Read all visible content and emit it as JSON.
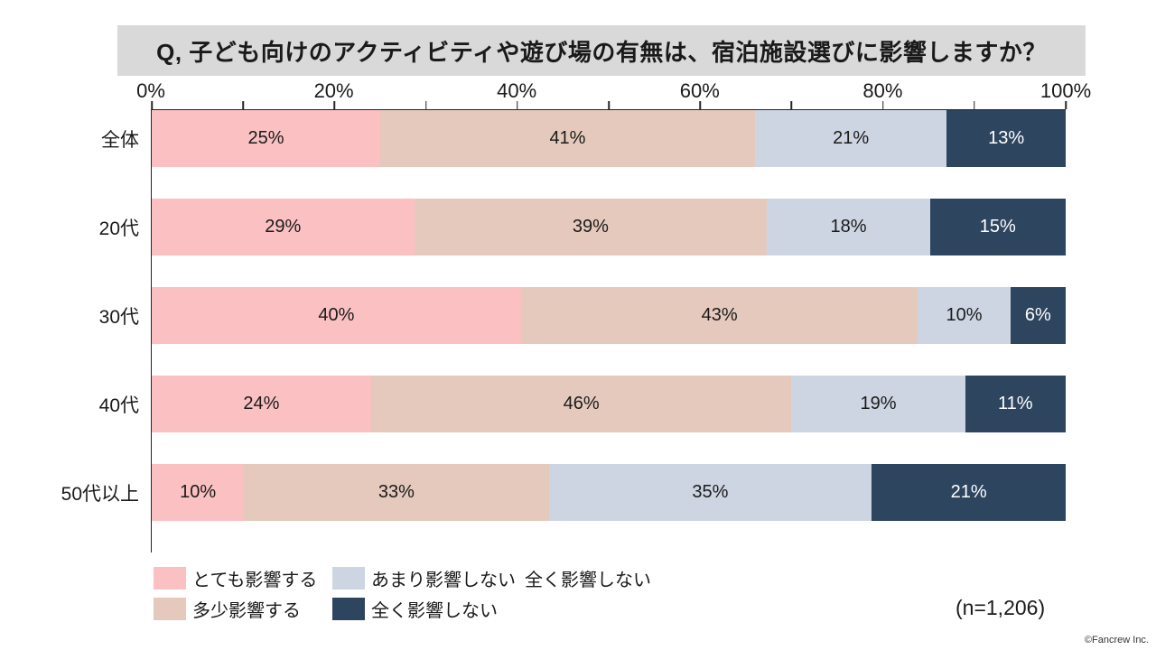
{
  "title": "Q, 子ども向けのアクティビティや遊び場の有無は、宿泊施設選びに影響しますか？",
  "chart_data": {
    "type": "bar",
    "orientation": "horizontal-stacked",
    "title": "Q, 子ども向けのアクティビティや遊び場の有無は、宿泊施設選びに影響しますか？",
    "categories": [
      "全体",
      "20代",
      "30代",
      "40代",
      "50代以上"
    ],
    "series": [
      {
        "name": "とても影響する",
        "color": "#FBC0C2",
        "label_color": "#1a1a1a",
        "values": [
          25,
          29,
          40,
          24,
          10
        ]
      },
      {
        "name": "多少影響する",
        "color": "#E5C9BD",
        "label_color": "#1a1a1a",
        "values": [
          41,
          39,
          43,
          46,
          33
        ]
      },
      {
        "name": "あまり影響しない",
        "color": "#CDD5E3",
        "label_color": "#1a1a1a",
        "values": [
          21,
          18,
          10,
          19,
          35
        ]
      },
      {
        "name": "全く影響しない",
        "color": "#2E4560",
        "label_color": "#ffffff",
        "values": [
          13,
          15,
          6,
          11,
          21
        ]
      }
    ],
    "value_suffix": "%",
    "xlim": [
      0,
      100
    ],
    "x_tick_labels": [
      "0%",
      "20%",
      "40%",
      "60%",
      "80%",
      "100%"
    ],
    "minor_tick_step": 10,
    "grid": false,
    "legend_position": "bottom-left"
  },
  "legend": {
    "rows": [
      [
        {
          "swatch": "#FBC0C2",
          "label": "とても影響する"
        },
        {
          "swatch": "#CDD5E3",
          "label": "あまり影響しない"
        },
        {
          "swatch": null,
          "label": "全く影響しない"
        }
      ],
      [
        {
          "swatch": "#E5C9BD",
          "label": "多少影響する"
        },
        {
          "swatch": "#2E4560",
          "label": "全く影響しない"
        }
      ]
    ]
  },
  "footer": {
    "sample_size": "(n=1,206)",
    "copyright": "©Fancrew Inc."
  }
}
